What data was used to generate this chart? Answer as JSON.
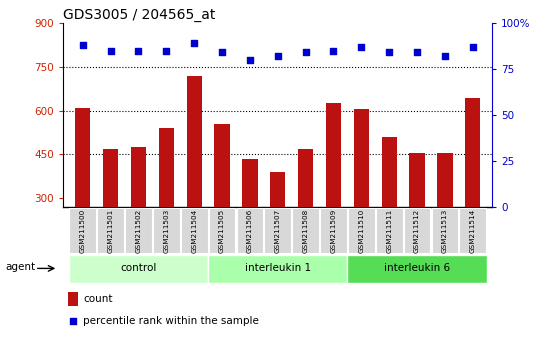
{
  "title": "GDS3005 / 204565_at",
  "samples": [
    "GSM211500",
    "GSM211501",
    "GSM211502",
    "GSM211503",
    "GSM211504",
    "GSM211505",
    "GSM211506",
    "GSM211507",
    "GSM211508",
    "GSM211509",
    "GSM211510",
    "GSM211511",
    "GSM211512",
    "GSM211513",
    "GSM211514"
  ],
  "counts": [
    610,
    470,
    475,
    540,
    720,
    555,
    435,
    390,
    470,
    625,
    605,
    510,
    455,
    455,
    645
  ],
  "percentiles": [
    88,
    85,
    85,
    85,
    89,
    84,
    80,
    82,
    84,
    85,
    87,
    84,
    84,
    82,
    87
  ],
  "bar_color": "#bb1111",
  "dot_color": "#0000cc",
  "ymin": 270,
  "ymax": 900,
  "yticks": [
    300,
    450,
    600,
    750,
    900
  ],
  "y2min": 0,
  "y2max": 100,
  "y2ticks": [
    0,
    25,
    50,
    75,
    100
  ],
  "groups": [
    {
      "label": "control",
      "start": 0,
      "end": 5,
      "color": "#ccffcc"
    },
    {
      "label": "interleukin 1",
      "start": 5,
      "end": 10,
      "color": "#aaffaa"
    },
    {
      "label": "interleukin 6",
      "start": 10,
      "end": 15,
      "color": "#55dd55"
    }
  ],
  "legend_count_color": "#bb1111",
  "legend_dot_color": "#0000cc",
  "axis_label_color_left": "#cc2200",
  "axis_label_color_right": "#0000cc",
  "grid_dotted_vals": [
    450,
    600,
    750
  ]
}
